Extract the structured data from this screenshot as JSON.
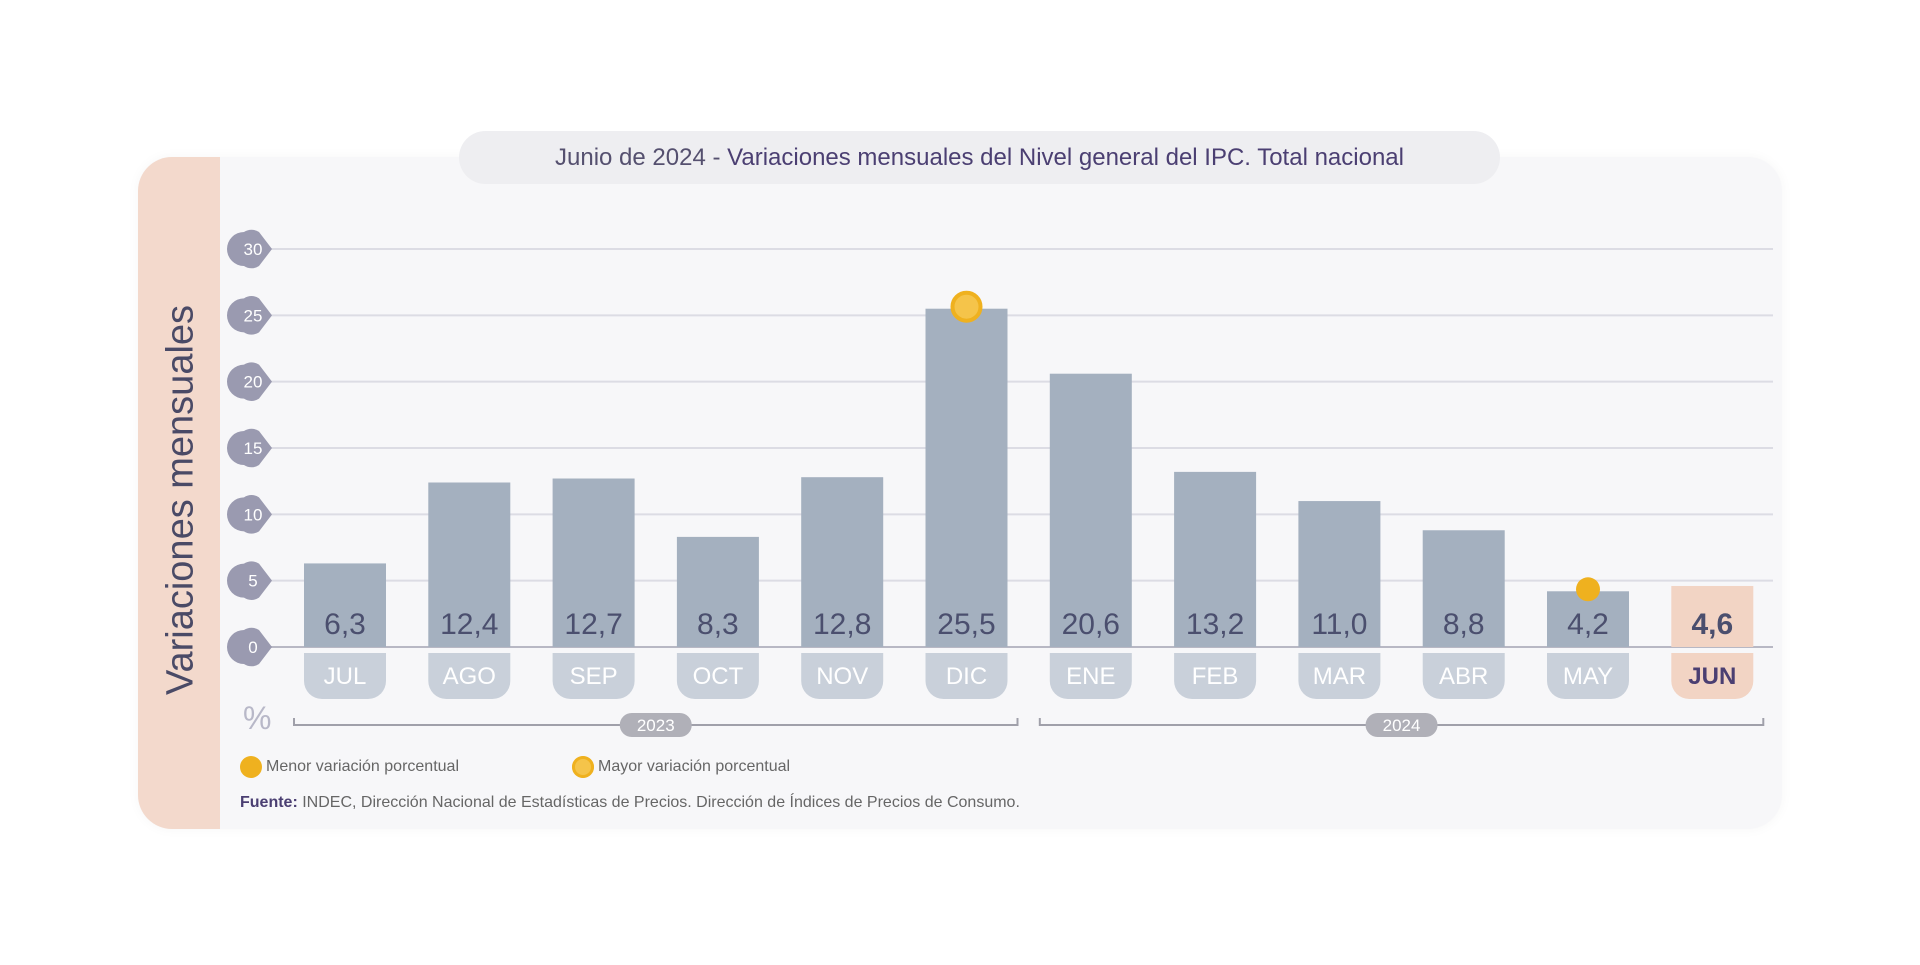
{
  "chart_data": {
    "type": "bar",
    "title_prefix": "Junio de 2024",
    "title": "Variaciones mensuales del Nivel general del IPC. Total nacional",
    "ylabel": "Variaciones mensuales",
    "unit": "%",
    "ylim": [
      0,
      30
    ],
    "yticks": [
      "0",
      "5",
      "10",
      "15",
      "20",
      "25",
      "30"
    ],
    "categories": [
      "JUL",
      "AGO",
      "SEP",
      "OCT",
      "NOV",
      "DIC",
      "ENE",
      "FEB",
      "MAR",
      "ABR",
      "MAY",
      "JUN"
    ],
    "values": [
      6.3,
      12.4,
      12.7,
      8.3,
      12.8,
      25.5,
      20.6,
      13.2,
      11.0,
      8.8,
      4.2,
      4.6
    ],
    "value_labels": [
      "6,3",
      "12,4",
      "12,7",
      "8,3",
      "12,8",
      "25,5",
      "20,6",
      "13,2",
      "11,0",
      "8,8",
      "4,2",
      "4,6"
    ],
    "highlight_index": 11,
    "max_marker_index": 5,
    "min_marker_index": 10,
    "year_groups": [
      {
        "label": "2023",
        "from": 0,
        "to": 5
      },
      {
        "label": "2024",
        "from": 6,
        "to": 11
      }
    ],
    "colors": {
      "bar": "#a4b0bf",
      "highlight": "#f2d4c4",
      "marker": "#efb11f",
      "tick": "#9a9ab0"
    }
  },
  "legend": {
    "min": "Menor variación porcentual",
    "max": "Mayor variación porcentual"
  },
  "source": {
    "label": "Fuente:",
    "text": " INDEC, Dirección Nacional de Estadísticas de Precios. Dirección de Índices de Precios de Consumo."
  }
}
